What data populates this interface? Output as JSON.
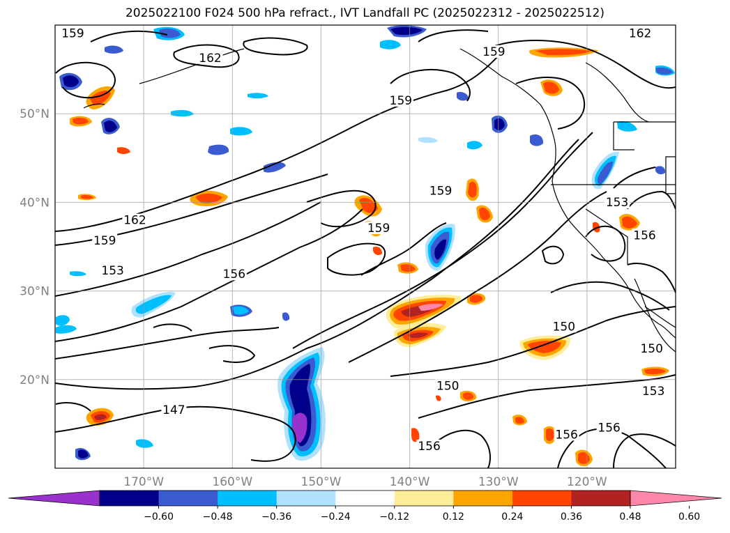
{
  "title": "2025022100 F024 500 hPa refract., IVT Landfall PC (2025022312 - 2025022512)",
  "map": {
    "lon_range": [
      -180,
      -110
    ],
    "lat_range": [
      10,
      60
    ],
    "lat_labels": [
      {
        "lat": 50,
        "text": "50°N"
      },
      {
        "lat": 40,
        "text": "40°N"
      },
      {
        "lat": 30,
        "text": "30°N"
      },
      {
        "lat": 20,
        "text": "20°N"
      }
    ],
    "lon_labels": [
      {
        "lon": -170,
        "text": "170°W"
      },
      {
        "lon": -160,
        "text": "160°W"
      },
      {
        "lon": -150,
        "text": "150°W"
      },
      {
        "lon": -140,
        "text": "140°W"
      },
      {
        "lon": -130,
        "text": "130°W"
      },
      {
        "lon": -120,
        "text": "120°W"
      }
    ],
    "contour_labels": [
      {
        "text": "159",
        "lon": -178,
        "lat": 58.8
      },
      {
        "text": "162",
        "lon": -162.5,
        "lat": 56
      },
      {
        "text": "159",
        "lon": -130.5,
        "lat": 56.7
      },
      {
        "text": "162",
        "lon": -114,
        "lat": 58.8
      },
      {
        "text": "159",
        "lon": -141,
        "lat": 51.2
      },
      {
        "text": "162",
        "lon": -171,
        "lat": 37.7
      },
      {
        "text": "159",
        "lon": -174.4,
        "lat": 35.4
      },
      {
        "text": "159",
        "lon": -136.5,
        "lat": 41
      },
      {
        "text": "159",
        "lon": -143.5,
        "lat": 36.8
      },
      {
        "text": "153",
        "lon": -116.6,
        "lat": 39.7
      },
      {
        "text": "156",
        "lon": -113.5,
        "lat": 36
      },
      {
        "text": "153",
        "lon": -173.5,
        "lat": 32
      },
      {
        "text": "156",
        "lon": -159.8,
        "lat": 31.6
      },
      {
        "text": "150",
        "lon": -122.6,
        "lat": 25.7
      },
      {
        "text": "150",
        "lon": -112.7,
        "lat": 23.2
      },
      {
        "text": "150",
        "lon": -135.7,
        "lat": 19
      },
      {
        "text": "153",
        "lon": -112.5,
        "lat": 18.4
      },
      {
        "text": "147",
        "lon": -166.6,
        "lat": 16.3
      },
      {
        "text": "156",
        "lon": -137.8,
        "lat": 12.2
      },
      {
        "text": "156",
        "lon": -122.3,
        "lat": 13.5
      },
      {
        "text": "156",
        "lon": -117.5,
        "lat": 14.3
      }
    ]
  },
  "colorbar": {
    "ticks": [
      "−0.60",
      "−0.48",
      "−0.36",
      "−0.24",
      "−0.12",
      "0.12",
      "0.24",
      "0.36",
      "0.48",
      "0.60"
    ],
    "colors": [
      "#9932cc",
      "#00008b",
      "#3b5bd0",
      "#00bfff",
      "#b0e2ff",
      "#ffffff",
      "#ffee99",
      "#ffa500",
      "#ff4500",
      "#b22222",
      "#ff88aa"
    ]
  },
  "chart_data": {
    "type": "heatmap",
    "variable": "IVT Landfall PC",
    "contour_field": "500 hPa refract.",
    "contour_levels": [
      147,
      150,
      153,
      156,
      159,
      162
    ],
    "color_levels": [
      -0.6,
      -0.48,
      -0.36,
      -0.24,
      -0.12,
      0.12,
      0.24,
      0.36,
      0.48,
      0.6
    ],
    "xlim": [
      -180,
      -110
    ],
    "ylim": [
      10,
      60
    ],
    "grid": true
  }
}
